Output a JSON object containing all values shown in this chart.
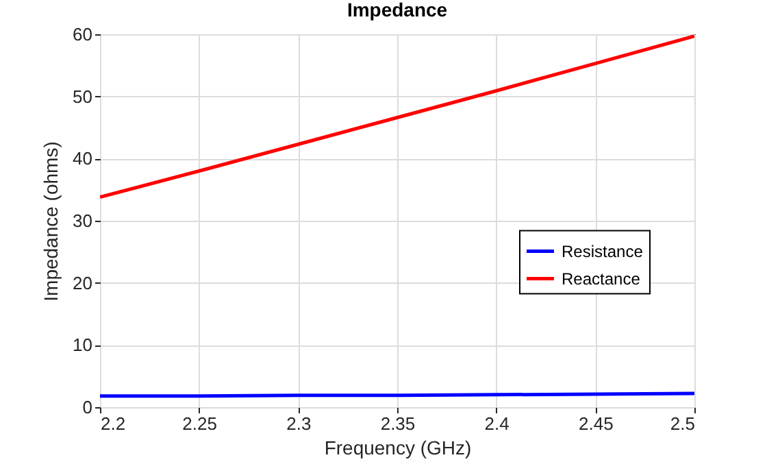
{
  "chart_data": {
    "type": "line",
    "title": "Impedance",
    "xlabel": "Frequency (GHz)",
    "ylabel": "Impedance (ohms)",
    "x": [
      2.2,
      2.25,
      2.3,
      2.35,
      2.4,
      2.45,
      2.5
    ],
    "series": [
      {
        "name": "Resistance",
        "color": "#0000ff",
        "values": [
          1.8,
          1.8,
          1.9,
          1.9,
          2.0,
          2.1,
          2.2
        ]
      },
      {
        "name": "Reactance",
        "color": "#ff0000",
        "values": [
          33.8,
          38.0,
          42.3,
          46.6,
          50.9,
          55.3,
          59.7
        ]
      }
    ],
    "xlim": [
      2.2,
      2.5
    ],
    "xticks": [
      2.2,
      2.25,
      2.3,
      2.35,
      2.4,
      2.45,
      2.5
    ],
    "ylim": [
      0,
      60
    ],
    "yticks": [
      0,
      10,
      20,
      30,
      40,
      50,
      60
    ],
    "grid": true,
    "legend": "right"
  }
}
